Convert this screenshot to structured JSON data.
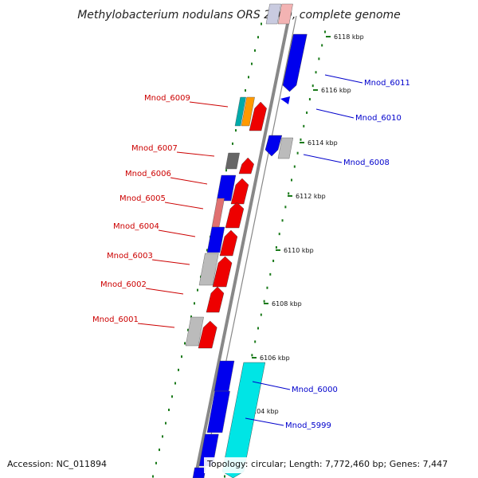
{
  "title": "Methylobacterium nodulans ORS 2060, complete genome",
  "footer": {
    "accession": "Accession: NC_011894",
    "topology": "Topology: circular; Length: 7,772,460 bp; Genes: 7,447"
  },
  "colors": {
    "backbone": "#888888",
    "tick": "#1a7a1a",
    "forward_label": "#cc0000",
    "reverse_label": "#0000cc",
    "red": "#ee0000",
    "blue": "#0000ee",
    "cyan": "#00e5e5",
    "gray": "#bbbbbb",
    "darkgray": "#666666",
    "orange": "#ff9900",
    "teal": "#00aaaa",
    "pink": "#e07070"
  },
  "ticks": [
    {
      "label": "6104 kbp"
    },
    {
      "label": "6106 kbp"
    },
    {
      "label": "6108 kbp"
    },
    {
      "label": "6110 kbp"
    },
    {
      "label": "6112 kbp"
    },
    {
      "label": "6114 kbp"
    },
    {
      "label": "6116 kbp"
    },
    {
      "label": "6118 kbp"
    }
  ],
  "forward_labels": [
    {
      "name": "Mnod_6009"
    },
    {
      "name": "Mnod_6007"
    },
    {
      "name": "Mnod_6006"
    },
    {
      "name": "Mnod_6005"
    },
    {
      "name": "Mnod_6004"
    },
    {
      "name": "Mnod_6003"
    },
    {
      "name": "Mnod_6002"
    },
    {
      "name": "Mnod_6001"
    }
  ],
  "reverse_labels": [
    {
      "name": "Mnod_6011"
    },
    {
      "name": "Mnod_6010"
    },
    {
      "name": "Mnod_6008"
    },
    {
      "name": "Mnod_6000"
    },
    {
      "name": "Mnod_5999"
    }
  ]
}
